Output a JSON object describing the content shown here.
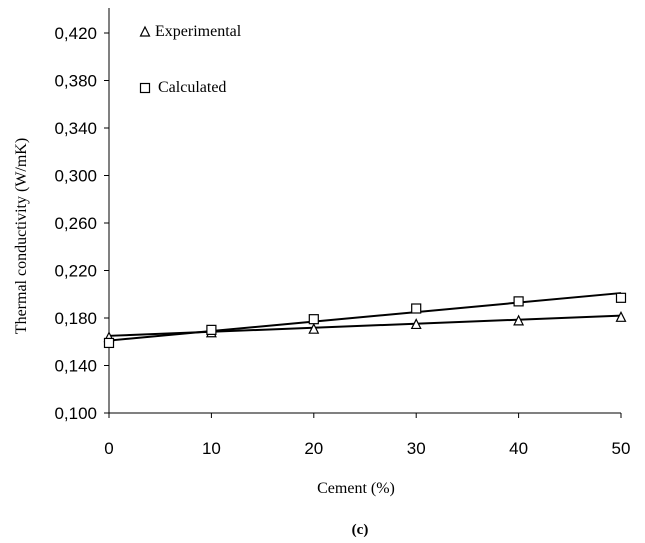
{
  "chart_data": {
    "type": "scatter",
    "xlabel": "Cement (%)",
    "ylabel": "Thermal conductivity (W/mK)",
    "caption": "(c)",
    "xlim": [
      0,
      50
    ],
    "ylim": [
      0.1,
      0.44
    ],
    "xticks": [
      0,
      10,
      20,
      30,
      40,
      50
    ],
    "xtick_labels": [
      "0",
      "10",
      "20",
      "30",
      "40",
      "50"
    ],
    "yticks": [
      0.1,
      0.14,
      0.18,
      0.22,
      0.26,
      0.3,
      0.34,
      0.38,
      0.42
    ],
    "ytick_labels": [
      "0,100",
      "0,140",
      "0,180",
      "0,220",
      "0,260",
      "0,300",
      "0,340",
      "0,380",
      "0,420"
    ],
    "grid": false,
    "legend_position": "top-left",
    "series": [
      {
        "name": "Experimental",
        "marker": "triangle",
        "x": [
          0,
          10,
          20,
          30,
          40,
          50
        ],
        "y": [
          0.164,
          0.168,
          0.171,
          0.175,
          0.178,
          0.181
        ],
        "trendline": [
          [
            0,
            0.165
          ],
          [
            50,
            0.182
          ]
        ]
      },
      {
        "name": "Calculated",
        "marker": "square",
        "x": [
          0,
          10,
          20,
          30,
          40,
          50
        ],
        "y": [
          0.159,
          0.17,
          0.179,
          0.188,
          0.194,
          0.197
        ],
        "trendline": [
          [
            0,
            0.161
          ],
          [
            50,
            0.201
          ]
        ]
      }
    ]
  }
}
